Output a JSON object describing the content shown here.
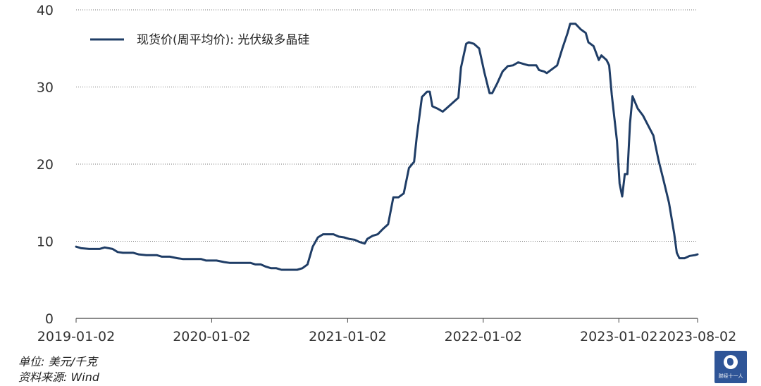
{
  "chart_data": {
    "type": "line",
    "legend": {
      "placement": "top-left"
    },
    "series": [
      {
        "name": "现货价(周平均价): 光伏级多晶硅",
        "color": "#1f3d66",
        "points": [
          [
            "2019-01-02",
            9.3
          ],
          [
            "2019-01-16",
            9.1
          ],
          [
            "2019-02-06",
            9.0
          ],
          [
            "2019-03-06",
            9.0
          ],
          [
            "2019-03-20",
            9.2
          ],
          [
            "2019-04-10",
            9.0
          ],
          [
            "2019-04-24",
            8.6
          ],
          [
            "2019-05-08",
            8.5
          ],
          [
            "2019-06-05",
            8.5
          ],
          [
            "2019-06-19",
            8.3
          ],
          [
            "2019-07-10",
            8.2
          ],
          [
            "2019-08-07",
            8.2
          ],
          [
            "2019-08-21",
            8.0
          ],
          [
            "2019-09-11",
            8.0
          ],
          [
            "2019-10-02",
            7.8
          ],
          [
            "2019-10-16",
            7.7
          ],
          [
            "2019-11-13",
            7.7
          ],
          [
            "2019-12-04",
            7.7
          ],
          [
            "2019-12-18",
            7.5
          ],
          [
            "2020-01-15",
            7.5
          ],
          [
            "2020-02-05",
            7.3
          ],
          [
            "2020-02-19",
            7.2
          ],
          [
            "2020-03-18",
            7.2
          ],
          [
            "2020-04-15",
            7.2
          ],
          [
            "2020-04-29",
            7.0
          ],
          [
            "2020-05-13",
            7.0
          ],
          [
            "2020-05-27",
            6.7
          ],
          [
            "2020-06-10",
            6.5
          ],
          [
            "2020-06-24",
            6.5
          ],
          [
            "2020-07-08",
            6.3
          ],
          [
            "2020-07-22",
            6.3
          ],
          [
            "2020-08-19",
            6.3
          ],
          [
            "2020-09-02",
            6.5
          ],
          [
            "2020-09-16",
            7.0
          ],
          [
            "2020-09-30",
            9.3
          ],
          [
            "2020-10-14",
            10.5
          ],
          [
            "2020-10-28",
            10.9
          ],
          [
            "2020-11-11",
            10.9
          ],
          [
            "2020-11-25",
            10.9
          ],
          [
            "2020-12-09",
            10.6
          ],
          [
            "2020-12-23",
            10.5
          ],
          [
            "2021-01-06",
            10.3
          ],
          [
            "2021-01-20",
            10.2
          ],
          [
            "2021-02-03",
            9.9
          ],
          [
            "2021-02-17",
            9.7
          ],
          [
            "2021-02-24",
            10.3
          ],
          [
            "2021-03-10",
            10.7
          ],
          [
            "2021-03-24",
            10.9
          ],
          [
            "2021-04-07",
            11.6
          ],
          [
            "2021-04-21",
            12.2
          ],
          [
            "2021-05-05",
            15.7
          ],
          [
            "2021-05-19",
            15.7
          ],
          [
            "2021-06-02",
            16.2
          ],
          [
            "2021-06-16",
            19.5
          ],
          [
            "2021-06-30",
            20.3
          ],
          [
            "2021-07-07",
            23.5
          ],
          [
            "2021-07-21",
            28.7
          ],
          [
            "2021-08-04",
            29.4
          ],
          [
            "2021-08-11",
            29.4
          ],
          [
            "2021-08-18",
            27.5
          ],
          [
            "2021-09-01",
            27.2
          ],
          [
            "2021-09-15",
            26.8
          ],
          [
            "2021-09-29",
            27.4
          ],
          [
            "2021-10-13",
            28.0
          ],
          [
            "2021-10-27",
            28.6
          ],
          [
            "2021-11-03",
            32.5
          ],
          [
            "2021-11-17",
            35.6
          ],
          [
            "2021-11-24",
            35.8
          ],
          [
            "2021-12-08",
            35.6
          ],
          [
            "2021-12-22",
            35.0
          ],
          [
            "2022-01-05",
            31.9
          ],
          [
            "2022-01-19",
            29.2
          ],
          [
            "2022-01-26",
            29.2
          ],
          [
            "2022-02-09",
            30.5
          ],
          [
            "2022-02-23",
            32.0
          ],
          [
            "2022-03-09",
            32.7
          ],
          [
            "2022-03-23",
            32.8
          ],
          [
            "2022-04-06",
            33.2
          ],
          [
            "2022-04-20",
            33.0
          ],
          [
            "2022-05-04",
            32.8
          ],
          [
            "2022-05-18",
            32.8
          ],
          [
            "2022-05-25",
            32.8
          ],
          [
            "2022-06-01",
            32.2
          ],
          [
            "2022-06-15",
            32.0
          ],
          [
            "2022-06-22",
            31.8
          ],
          [
            "2022-07-06",
            32.3
          ],
          [
            "2022-07-20",
            32.8
          ],
          [
            "2022-08-03",
            35.0
          ],
          [
            "2022-08-17",
            37.0
          ],
          [
            "2022-08-24",
            38.2
          ],
          [
            "2022-09-07",
            38.2
          ],
          [
            "2022-09-21",
            37.5
          ],
          [
            "2022-10-05",
            37.0
          ],
          [
            "2022-10-12",
            35.8
          ],
          [
            "2022-10-26",
            35.3
          ],
          [
            "2022-11-09",
            33.5
          ],
          [
            "2022-11-16",
            34.1
          ],
          [
            "2022-11-30",
            33.5
          ],
          [
            "2022-12-07",
            32.8
          ],
          [
            "2022-12-14",
            29.0
          ],
          [
            "2022-12-21",
            26.0
          ],
          [
            "2022-12-28",
            23.0
          ],
          [
            "2023-01-04",
            17.5
          ],
          [
            "2023-01-11",
            15.8
          ],
          [
            "2023-01-18",
            18.7
          ],
          [
            "2023-01-25",
            18.7
          ],
          [
            "2023-02-01",
            25.3
          ],
          [
            "2023-02-08",
            28.8
          ],
          [
            "2023-02-15",
            28.0
          ],
          [
            "2023-02-22",
            27.2
          ],
          [
            "2023-03-08",
            26.3
          ],
          [
            "2023-03-22",
            25.0
          ],
          [
            "2023-04-05",
            23.7
          ],
          [
            "2023-04-19",
            20.5
          ],
          [
            "2023-05-03",
            17.8
          ],
          [
            "2023-05-17",
            15.0
          ],
          [
            "2023-05-31",
            11.0
          ],
          [
            "2023-06-07",
            8.5
          ],
          [
            "2023-06-14",
            7.8
          ],
          [
            "2023-06-28",
            7.8
          ],
          [
            "2023-07-12",
            8.1
          ],
          [
            "2023-07-26",
            8.2
          ],
          [
            "2023-08-02",
            8.3
          ]
        ]
      }
    ],
    "x_ticks": [
      "2019-01-02",
      "2020-01-02",
      "2021-01-02",
      "2022-01-02",
      "2023-01-02",
      "2023-08-02"
    ],
    "xlim": [
      "2019-01-02",
      "2023-08-02"
    ],
    "y_ticks": [
      0,
      10,
      20,
      30,
      40
    ],
    "ylim": [
      0,
      40
    ],
    "grid": {
      "horizontal": true,
      "style": "dotted"
    }
  },
  "footer": {
    "unit": "单位: 美元/千克",
    "source": "资料来源: Wind"
  },
  "logo": {
    "text": "财经十一人"
  }
}
